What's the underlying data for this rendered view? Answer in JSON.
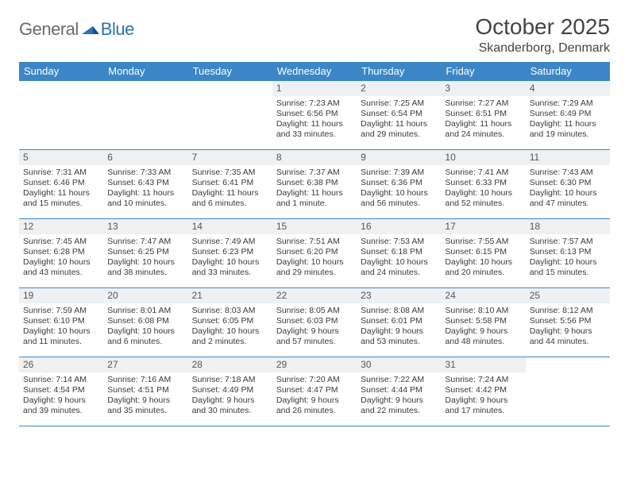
{
  "logo": {
    "text1": "General",
    "text2": "Blue"
  },
  "title": "October 2025",
  "location": "Skanderborg, Denmark",
  "colors": {
    "header_bg": "#3b86c6",
    "header_text": "#ffffff",
    "rule": "#3b86c6",
    "daynum_bg": "#eef0f1",
    "body_text": "#3a3a3a",
    "logo_gray": "#6a6a6a",
    "logo_blue": "#2a72b5"
  },
  "day_names": [
    "Sunday",
    "Monday",
    "Tuesday",
    "Wednesday",
    "Thursday",
    "Friday",
    "Saturday"
  ],
  "weeks": [
    [
      null,
      null,
      null,
      {
        "n": "1",
        "sr": "Sunrise: 7:23 AM",
        "ss": "Sunset: 6:56 PM",
        "d1": "Daylight: 11 hours",
        "d2": "and 33 minutes."
      },
      {
        "n": "2",
        "sr": "Sunrise: 7:25 AM",
        "ss": "Sunset: 6:54 PM",
        "d1": "Daylight: 11 hours",
        "d2": "and 29 minutes."
      },
      {
        "n": "3",
        "sr": "Sunrise: 7:27 AM",
        "ss": "Sunset: 6:51 PM",
        "d1": "Daylight: 11 hours",
        "d2": "and 24 minutes."
      },
      {
        "n": "4",
        "sr": "Sunrise: 7:29 AM",
        "ss": "Sunset: 6:49 PM",
        "d1": "Daylight: 11 hours",
        "d2": "and 19 minutes."
      }
    ],
    [
      {
        "n": "5",
        "sr": "Sunrise: 7:31 AM",
        "ss": "Sunset: 6:46 PM",
        "d1": "Daylight: 11 hours",
        "d2": "and 15 minutes."
      },
      {
        "n": "6",
        "sr": "Sunrise: 7:33 AM",
        "ss": "Sunset: 6:43 PM",
        "d1": "Daylight: 11 hours",
        "d2": "and 10 minutes."
      },
      {
        "n": "7",
        "sr": "Sunrise: 7:35 AM",
        "ss": "Sunset: 6:41 PM",
        "d1": "Daylight: 11 hours",
        "d2": "and 6 minutes."
      },
      {
        "n": "8",
        "sr": "Sunrise: 7:37 AM",
        "ss": "Sunset: 6:38 PM",
        "d1": "Daylight: 11 hours",
        "d2": "and 1 minute."
      },
      {
        "n": "9",
        "sr": "Sunrise: 7:39 AM",
        "ss": "Sunset: 6:36 PM",
        "d1": "Daylight: 10 hours",
        "d2": "and 56 minutes."
      },
      {
        "n": "10",
        "sr": "Sunrise: 7:41 AM",
        "ss": "Sunset: 6:33 PM",
        "d1": "Daylight: 10 hours",
        "d2": "and 52 minutes."
      },
      {
        "n": "11",
        "sr": "Sunrise: 7:43 AM",
        "ss": "Sunset: 6:30 PM",
        "d1": "Daylight: 10 hours",
        "d2": "and 47 minutes."
      }
    ],
    [
      {
        "n": "12",
        "sr": "Sunrise: 7:45 AM",
        "ss": "Sunset: 6:28 PM",
        "d1": "Daylight: 10 hours",
        "d2": "and 43 minutes."
      },
      {
        "n": "13",
        "sr": "Sunrise: 7:47 AM",
        "ss": "Sunset: 6:25 PM",
        "d1": "Daylight: 10 hours",
        "d2": "and 38 minutes."
      },
      {
        "n": "14",
        "sr": "Sunrise: 7:49 AM",
        "ss": "Sunset: 6:23 PM",
        "d1": "Daylight: 10 hours",
        "d2": "and 33 minutes."
      },
      {
        "n": "15",
        "sr": "Sunrise: 7:51 AM",
        "ss": "Sunset: 6:20 PM",
        "d1": "Daylight: 10 hours",
        "d2": "and 29 minutes."
      },
      {
        "n": "16",
        "sr": "Sunrise: 7:53 AM",
        "ss": "Sunset: 6:18 PM",
        "d1": "Daylight: 10 hours",
        "d2": "and 24 minutes."
      },
      {
        "n": "17",
        "sr": "Sunrise: 7:55 AM",
        "ss": "Sunset: 6:15 PM",
        "d1": "Daylight: 10 hours",
        "d2": "and 20 minutes."
      },
      {
        "n": "18",
        "sr": "Sunrise: 7:57 AM",
        "ss": "Sunset: 6:13 PM",
        "d1": "Daylight: 10 hours",
        "d2": "and 15 minutes."
      }
    ],
    [
      {
        "n": "19",
        "sr": "Sunrise: 7:59 AM",
        "ss": "Sunset: 6:10 PM",
        "d1": "Daylight: 10 hours",
        "d2": "and 11 minutes."
      },
      {
        "n": "20",
        "sr": "Sunrise: 8:01 AM",
        "ss": "Sunset: 6:08 PM",
        "d1": "Daylight: 10 hours",
        "d2": "and 6 minutes."
      },
      {
        "n": "21",
        "sr": "Sunrise: 8:03 AM",
        "ss": "Sunset: 6:05 PM",
        "d1": "Daylight: 10 hours",
        "d2": "and 2 minutes."
      },
      {
        "n": "22",
        "sr": "Sunrise: 8:05 AM",
        "ss": "Sunset: 6:03 PM",
        "d1": "Daylight: 9 hours",
        "d2": "and 57 minutes."
      },
      {
        "n": "23",
        "sr": "Sunrise: 8:08 AM",
        "ss": "Sunset: 6:01 PM",
        "d1": "Daylight: 9 hours",
        "d2": "and 53 minutes."
      },
      {
        "n": "24",
        "sr": "Sunrise: 8:10 AM",
        "ss": "Sunset: 5:58 PM",
        "d1": "Daylight: 9 hours",
        "d2": "and 48 minutes."
      },
      {
        "n": "25",
        "sr": "Sunrise: 8:12 AM",
        "ss": "Sunset: 5:56 PM",
        "d1": "Daylight: 9 hours",
        "d2": "and 44 minutes."
      }
    ],
    [
      {
        "n": "26",
        "sr": "Sunrise: 7:14 AM",
        "ss": "Sunset: 4:54 PM",
        "d1": "Daylight: 9 hours",
        "d2": "and 39 minutes."
      },
      {
        "n": "27",
        "sr": "Sunrise: 7:16 AM",
        "ss": "Sunset: 4:51 PM",
        "d1": "Daylight: 9 hours",
        "d2": "and 35 minutes."
      },
      {
        "n": "28",
        "sr": "Sunrise: 7:18 AM",
        "ss": "Sunset: 4:49 PM",
        "d1": "Daylight: 9 hours",
        "d2": "and 30 minutes."
      },
      {
        "n": "29",
        "sr": "Sunrise: 7:20 AM",
        "ss": "Sunset: 4:47 PM",
        "d1": "Daylight: 9 hours",
        "d2": "and 26 minutes."
      },
      {
        "n": "30",
        "sr": "Sunrise: 7:22 AM",
        "ss": "Sunset: 4:44 PM",
        "d1": "Daylight: 9 hours",
        "d2": "and 22 minutes."
      },
      {
        "n": "31",
        "sr": "Sunrise: 7:24 AM",
        "ss": "Sunset: 4:42 PM",
        "d1": "Daylight: 9 hours",
        "d2": "and 17 minutes."
      },
      null
    ]
  ]
}
